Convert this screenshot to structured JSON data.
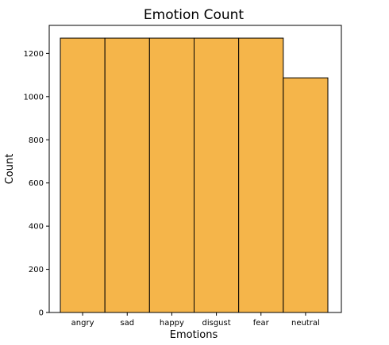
{
  "chart_data": {
    "type": "bar",
    "title": "Emotion Count",
    "xlabel": "Emotions",
    "ylabel": "Count",
    "categories": [
      "angry",
      "sad",
      "happy",
      "disgust",
      "fear",
      "neutral"
    ],
    "values": [
      1271,
      1271,
      1271,
      1271,
      1271,
      1087
    ],
    "ylim": [
      0,
      1330
    ],
    "yticks": [
      0,
      200,
      400,
      600,
      800,
      1000,
      1200
    ],
    "bar_color": "#f5b54a",
    "edge_color": "#000000",
    "grid": false,
    "legend": "none"
  }
}
